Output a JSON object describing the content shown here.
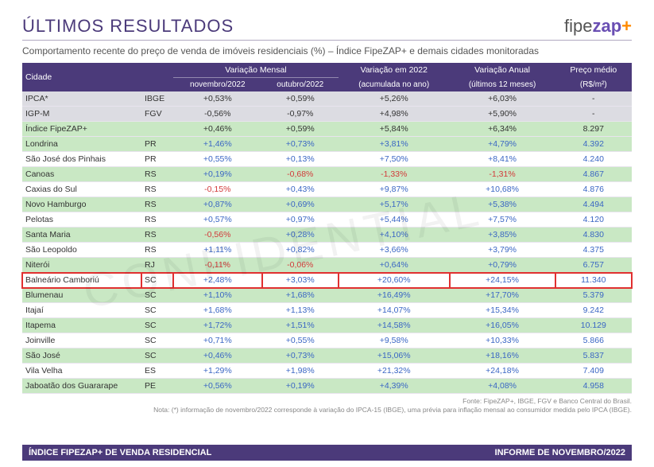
{
  "colors": {
    "purple": "#4b3a7a",
    "header_bg": "#4b3a7a",
    "title_color": "#4b3a7a",
    "zap_color": "#6a4fb3",
    "plus_color": "#ff8a00",
    "green_row": "#c9e8c4",
    "grey_row": "#dcdce2",
    "text_blue": "#3a66c4",
    "text_red": "#d23a3a",
    "text_dark": "#333333",
    "highlight_border": "#e03030"
  },
  "header": {
    "title": "ÚLTIMOS RESULTADOS",
    "logo_a": "fipe",
    "logo_b": "zap",
    "logo_c": "+",
    "subtitle": "Comportamento recente do preço de venda de imóveis residenciais (%) – Índice FipeZAP+ e demais cidades monitoradas"
  },
  "table": {
    "head": {
      "cidade": "Cidade",
      "var_mensal": "Variação Mensal",
      "nov": "novembro/2022",
      "out": "outubro/2022",
      "var_2022": "Variação em 2022",
      "var_2022_sub": "(acumulada no ano)",
      "var_anual": "Variação Anual",
      "var_anual_sub": "(últimos 12 meses)",
      "preco": "Preço médio",
      "preco_sub": "(R$/m²)"
    },
    "rows": [
      {
        "name": "IPCA*",
        "uf": "IBGE",
        "nov": "+0,53%",
        "out": "+0,59%",
        "y2022": "+5,26%",
        "y12": "+6,03%",
        "price": "-",
        "bg": "grey",
        "c": [
          "k",
          "k",
          "k",
          "k",
          "k"
        ]
      },
      {
        "name": "IGP-M",
        "uf": "FGV",
        "nov": "-0,56%",
        "out": "-0,97%",
        "y2022": "+4,98%",
        "y12": "+5,90%",
        "price": "-",
        "bg": "grey",
        "c": [
          "k",
          "k",
          "k",
          "k",
          "k"
        ]
      },
      {
        "name": "Índice FipeZAP+",
        "uf": "",
        "nov": "+0,46%",
        "out": "+0,59%",
        "y2022": "+5,84%",
        "y12": "+6,34%",
        "price": "8.297",
        "bg": "green",
        "c": [
          "k",
          "k",
          "k",
          "k",
          "k"
        ]
      },
      {
        "name": "Londrina",
        "uf": "PR",
        "nov": "+1,46%",
        "out": "+0,73%",
        "y2022": "+3,81%",
        "y12": "+4,79%",
        "price": "4.392",
        "bg": "green",
        "c": [
          "b",
          "b",
          "b",
          "b",
          "b"
        ]
      },
      {
        "name": "São José dos Pinhais",
        "uf": "PR",
        "nov": "+0,55%",
        "out": "+0,13%",
        "y2022": "+7,50%",
        "y12": "+8,41%",
        "price": "4.240",
        "bg": "",
        "c": [
          "b",
          "b",
          "b",
          "b",
          "b"
        ]
      },
      {
        "name": "Canoas",
        "uf": "RS",
        "nov": "+0,19%",
        "out": "-0,68%",
        "y2022": "-1,33%",
        "y12": "-1,31%",
        "price": "4.867",
        "bg": "green",
        "c": [
          "b",
          "r",
          "r",
          "r",
          "b"
        ]
      },
      {
        "name": "Caxias do Sul",
        "uf": "RS",
        "nov": "-0,15%",
        "out": "+0,43%",
        "y2022": "+9,87%",
        "y12": "+10,68%",
        "price": "4.876",
        "bg": "",
        "c": [
          "r",
          "b",
          "b",
          "b",
          "b"
        ]
      },
      {
        "name": "Novo Hamburgo",
        "uf": "RS",
        "nov": "+0,87%",
        "out": "+0,69%",
        "y2022": "+5,17%",
        "y12": "+5,38%",
        "price": "4.494",
        "bg": "green",
        "c": [
          "b",
          "b",
          "b",
          "b",
          "b"
        ]
      },
      {
        "name": "Pelotas",
        "uf": "RS",
        "nov": "+0,57%",
        "out": "+0,97%",
        "y2022": "+5,44%",
        "y12": "+7,57%",
        "price": "4.120",
        "bg": "",
        "c": [
          "b",
          "b",
          "b",
          "b",
          "b"
        ]
      },
      {
        "name": "Santa Maria",
        "uf": "RS",
        "nov": "-0,56%",
        "out": "+0,28%",
        "y2022": "+4,10%",
        "y12": "+3,85%",
        "price": "4.830",
        "bg": "green",
        "c": [
          "r",
          "b",
          "b",
          "b",
          "b"
        ]
      },
      {
        "name": "São Leopoldo",
        "uf": "RS",
        "nov": "+1,11%",
        "out": "+0,82%",
        "y2022": "+3,66%",
        "y12": "+3,79%",
        "price": "4.375",
        "bg": "",
        "c": [
          "b",
          "b",
          "b",
          "b",
          "b"
        ]
      },
      {
        "name": "Niterói",
        "uf": "RJ",
        "nov": "-0,11%",
        "out": "-0,06%",
        "y2022": "+0,64%",
        "y12": "+0,79%",
        "price": "6.757",
        "bg": "green",
        "c": [
          "r",
          "r",
          "b",
          "b",
          "b"
        ]
      },
      {
        "name": "Balneário Camboriú",
        "uf": "SC",
        "nov": "+2,48%",
        "out": "+3,03%",
        "y2022": "+20,60%",
        "y12": "+24,15%",
        "price": "11.340",
        "bg": "",
        "c": [
          "b",
          "b",
          "b",
          "b",
          "b"
        ],
        "hl": true
      },
      {
        "name": "Blumenau",
        "uf": "SC",
        "nov": "+1,10%",
        "out": "+1,68%",
        "y2022": "+16,49%",
        "y12": "+17,70%",
        "price": "5.379",
        "bg": "green",
        "c": [
          "b",
          "b",
          "b",
          "b",
          "b"
        ]
      },
      {
        "name": "Itajaí",
        "uf": "SC",
        "nov": "+1,68%",
        "out": "+1,13%",
        "y2022": "+14,07%",
        "y12": "+15,34%",
        "price": "9.242",
        "bg": "",
        "c": [
          "b",
          "b",
          "b",
          "b",
          "b"
        ]
      },
      {
        "name": "Itapema",
        "uf": "SC",
        "nov": "+1,72%",
        "out": "+1,51%",
        "y2022": "+14,58%",
        "y12": "+16,05%",
        "price": "10.129",
        "bg": "green",
        "c": [
          "b",
          "b",
          "b",
          "b",
          "b"
        ]
      },
      {
        "name": "Joinville",
        "uf": "SC",
        "nov": "+0,71%",
        "out": "+0,55%",
        "y2022": "+9,58%",
        "y12": "+10,33%",
        "price": "5.866",
        "bg": "",
        "c": [
          "b",
          "b",
          "b",
          "b",
          "b"
        ]
      },
      {
        "name": "São José",
        "uf": "SC",
        "nov": "+0,46%",
        "out": "+0,73%",
        "y2022": "+15,06%",
        "y12": "+18,16%",
        "price": "5.837",
        "bg": "green",
        "c": [
          "b",
          "b",
          "b",
          "b",
          "b"
        ]
      },
      {
        "name": "Vila Velha",
        "uf": "ES",
        "nov": "+1,29%",
        "out": "+1,98%",
        "y2022": "+21,32%",
        "y12": "+24,18%",
        "price": "7.409",
        "bg": "",
        "c": [
          "b",
          "b",
          "b",
          "b",
          "b"
        ]
      },
      {
        "name": "Jaboatão dos Guararape",
        "uf": "PE",
        "nov": "+0,56%",
        "out": "+0,19%",
        "y2022": "+4,39%",
        "y12": "+4,08%",
        "price": "4.958",
        "bg": "green",
        "c": [
          "b",
          "b",
          "b",
          "b",
          "b"
        ]
      }
    ]
  },
  "note1": "Fonte: FipeZAP+, IBGE, FGV e Banco Central do Brasil.",
  "note2": "Nota: (*) informação de novembro/2022 corresponde à variação do IPCA-15 (IBGE), uma prévia para inflação mensal ao consumidor medida pelo IPCA (IBGE).",
  "footer": {
    "left": "ÍNDICE FIPEZAP+ DE VENDA RESIDENCIAL",
    "right": "INFORME DE NOVEMBRO/2022"
  }
}
